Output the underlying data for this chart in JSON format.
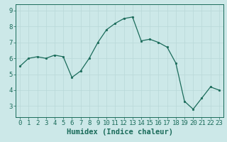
{
  "x": [
    0,
    1,
    2,
    3,
    4,
    5,
    6,
    7,
    8,
    9,
    10,
    11,
    12,
    13,
    14,
    15,
    16,
    17,
    18,
    19,
    20,
    21,
    22,
    23
  ],
  "y": [
    5.5,
    6.0,
    6.1,
    6.0,
    6.2,
    6.1,
    4.8,
    5.2,
    6.0,
    7.0,
    7.8,
    8.2,
    8.5,
    8.6,
    7.1,
    7.2,
    7.0,
    6.7,
    5.7,
    3.3,
    2.8,
    3.5,
    4.2,
    4.0
  ],
  "line_color": "#1a6b5a",
  "marker_color": "#1a6b5a",
  "bg_color": "#cce8e8",
  "grid_color": "#b8d8d8",
  "axis_color": "#1a6b5a",
  "xlabel": "Humidex (Indice chaleur)",
  "xlim": [
    -0.5,
    23.5
  ],
  "ylim": [
    2.3,
    9.4
  ],
  "yticks": [
    3,
    4,
    5,
    6,
    7,
    8,
    9
  ],
  "xticks": [
    0,
    1,
    2,
    3,
    4,
    5,
    6,
    7,
    8,
    9,
    10,
    11,
    12,
    13,
    14,
    15,
    16,
    17,
    18,
    19,
    20,
    21,
    22,
    23
  ],
  "xlabel_fontsize": 7.5,
  "tick_fontsize": 6.5
}
